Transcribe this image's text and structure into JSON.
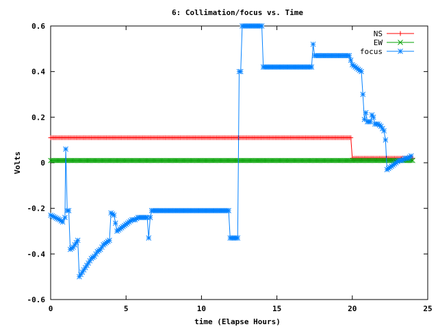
{
  "chart_data": {
    "type": "line",
    "title": "6: Collimation/focus vs. Time",
    "xlabel": "time (Elapse Hours)",
    "ylabel": "Volts",
    "xlim": [
      0,
      25
    ],
    "ylim": [
      -0.6,
      0.6
    ],
    "xticks": [
      0,
      5,
      10,
      15,
      20,
      25
    ],
    "yticks": [
      -0.6,
      -0.4,
      -0.2,
      0,
      0.2,
      0.4,
      0.6
    ],
    "xtick_labels": [
      "0",
      "5",
      "10",
      "15",
      "20",
      "25"
    ],
    "ytick_labels": [
      "-0.6",
      "-0.4",
      "-0.2",
      "0",
      "0.2",
      "0.4",
      "0.6"
    ],
    "grid": false,
    "legend_position": "top-right",
    "series": [
      {
        "name": "NS",
        "color": "#ff0000",
        "marker": "plus",
        "points": [
          [
            0,
            0.11
          ],
          [
            19.9,
            0.11
          ],
          [
            20.0,
            0.02
          ],
          [
            24.0,
            0.02
          ]
        ]
      },
      {
        "name": "EW",
        "color": "#00a000",
        "marker": "cross",
        "points": [
          [
            0,
            0.01
          ],
          [
            24.0,
            0.01
          ]
        ]
      },
      {
        "name": "focus",
        "color": "#0080ff",
        "marker": "star",
        "points": [
          [
            0.0,
            -0.23
          ],
          [
            0.3,
            -0.24
          ],
          [
            0.6,
            -0.25
          ],
          [
            0.8,
            -0.26
          ],
          [
            0.95,
            -0.24
          ],
          [
            1.0,
            0.06
          ],
          [
            1.1,
            -0.21
          ],
          [
            1.2,
            -0.21
          ],
          [
            1.3,
            -0.38
          ],
          [
            1.5,
            -0.37
          ],
          [
            1.7,
            -0.35
          ],
          [
            1.8,
            -0.34
          ],
          [
            1.9,
            -0.5
          ],
          [
            2.1,
            -0.48
          ],
          [
            2.3,
            -0.46
          ],
          [
            2.5,
            -0.44
          ],
          [
            2.7,
            -0.42
          ],
          [
            2.9,
            -0.41
          ],
          [
            3.1,
            -0.39
          ],
          [
            3.3,
            -0.38
          ],
          [
            3.5,
            -0.36
          ],
          [
            3.7,
            -0.35
          ],
          [
            3.9,
            -0.34
          ],
          [
            4.0,
            -0.22
          ],
          [
            4.2,
            -0.23
          ],
          [
            4.4,
            -0.3
          ],
          [
            4.6,
            -0.29
          ],
          [
            4.8,
            -0.28
          ],
          [
            5.0,
            -0.27
          ],
          [
            5.2,
            -0.26
          ],
          [
            5.4,
            -0.25
          ],
          [
            5.6,
            -0.25
          ],
          [
            5.8,
            -0.24
          ],
          [
            6.0,
            -0.24
          ],
          [
            6.2,
            -0.24
          ],
          [
            6.4,
            -0.24
          ],
          [
            6.5,
            -0.33
          ],
          [
            6.6,
            -0.24
          ],
          [
            6.7,
            -0.21
          ],
          [
            7.0,
            -0.21
          ],
          [
            8.0,
            -0.21
          ],
          [
            9.0,
            -0.21
          ],
          [
            10.0,
            -0.21
          ],
          [
            11.0,
            -0.21
          ],
          [
            11.8,
            -0.21
          ],
          [
            11.9,
            -0.33
          ],
          [
            12.2,
            -0.33
          ],
          [
            12.4,
            -0.33
          ],
          [
            12.5,
            0.4
          ],
          [
            12.6,
            0.4
          ],
          [
            12.7,
            0.6
          ],
          [
            13.5,
            0.6
          ],
          [
            14.0,
            0.6
          ],
          [
            14.1,
            0.42
          ],
          [
            15.0,
            0.42
          ],
          [
            16.0,
            0.42
          ],
          [
            17.0,
            0.42
          ],
          [
            17.3,
            0.42
          ],
          [
            17.4,
            0.52
          ],
          [
            17.5,
            0.47
          ],
          [
            18.0,
            0.47
          ],
          [
            19.0,
            0.47
          ],
          [
            19.8,
            0.47
          ],
          [
            20.0,
            0.43
          ],
          [
            20.2,
            0.42
          ],
          [
            20.4,
            0.41
          ],
          [
            20.6,
            0.4
          ],
          [
            20.7,
            0.3
          ],
          [
            20.8,
            0.19
          ],
          [
            20.9,
            0.22
          ],
          [
            21.0,
            0.18
          ],
          [
            21.2,
            0.18
          ],
          [
            21.3,
            0.21
          ],
          [
            21.4,
            0.2
          ],
          [
            21.5,
            0.17
          ],
          [
            21.7,
            0.17
          ],
          [
            21.9,
            0.16
          ],
          [
            22.1,
            0.14
          ],
          [
            22.2,
            0.1
          ],
          [
            22.3,
            -0.03
          ],
          [
            22.5,
            -0.02
          ],
          [
            22.7,
            -0.01
          ],
          [
            22.9,
            0.0
          ],
          [
            23.1,
            0.01
          ],
          [
            23.3,
            0.01
          ],
          [
            23.5,
            0.02
          ],
          [
            23.7,
            0.02
          ],
          [
            23.9,
            0.03
          ]
        ]
      }
    ]
  }
}
